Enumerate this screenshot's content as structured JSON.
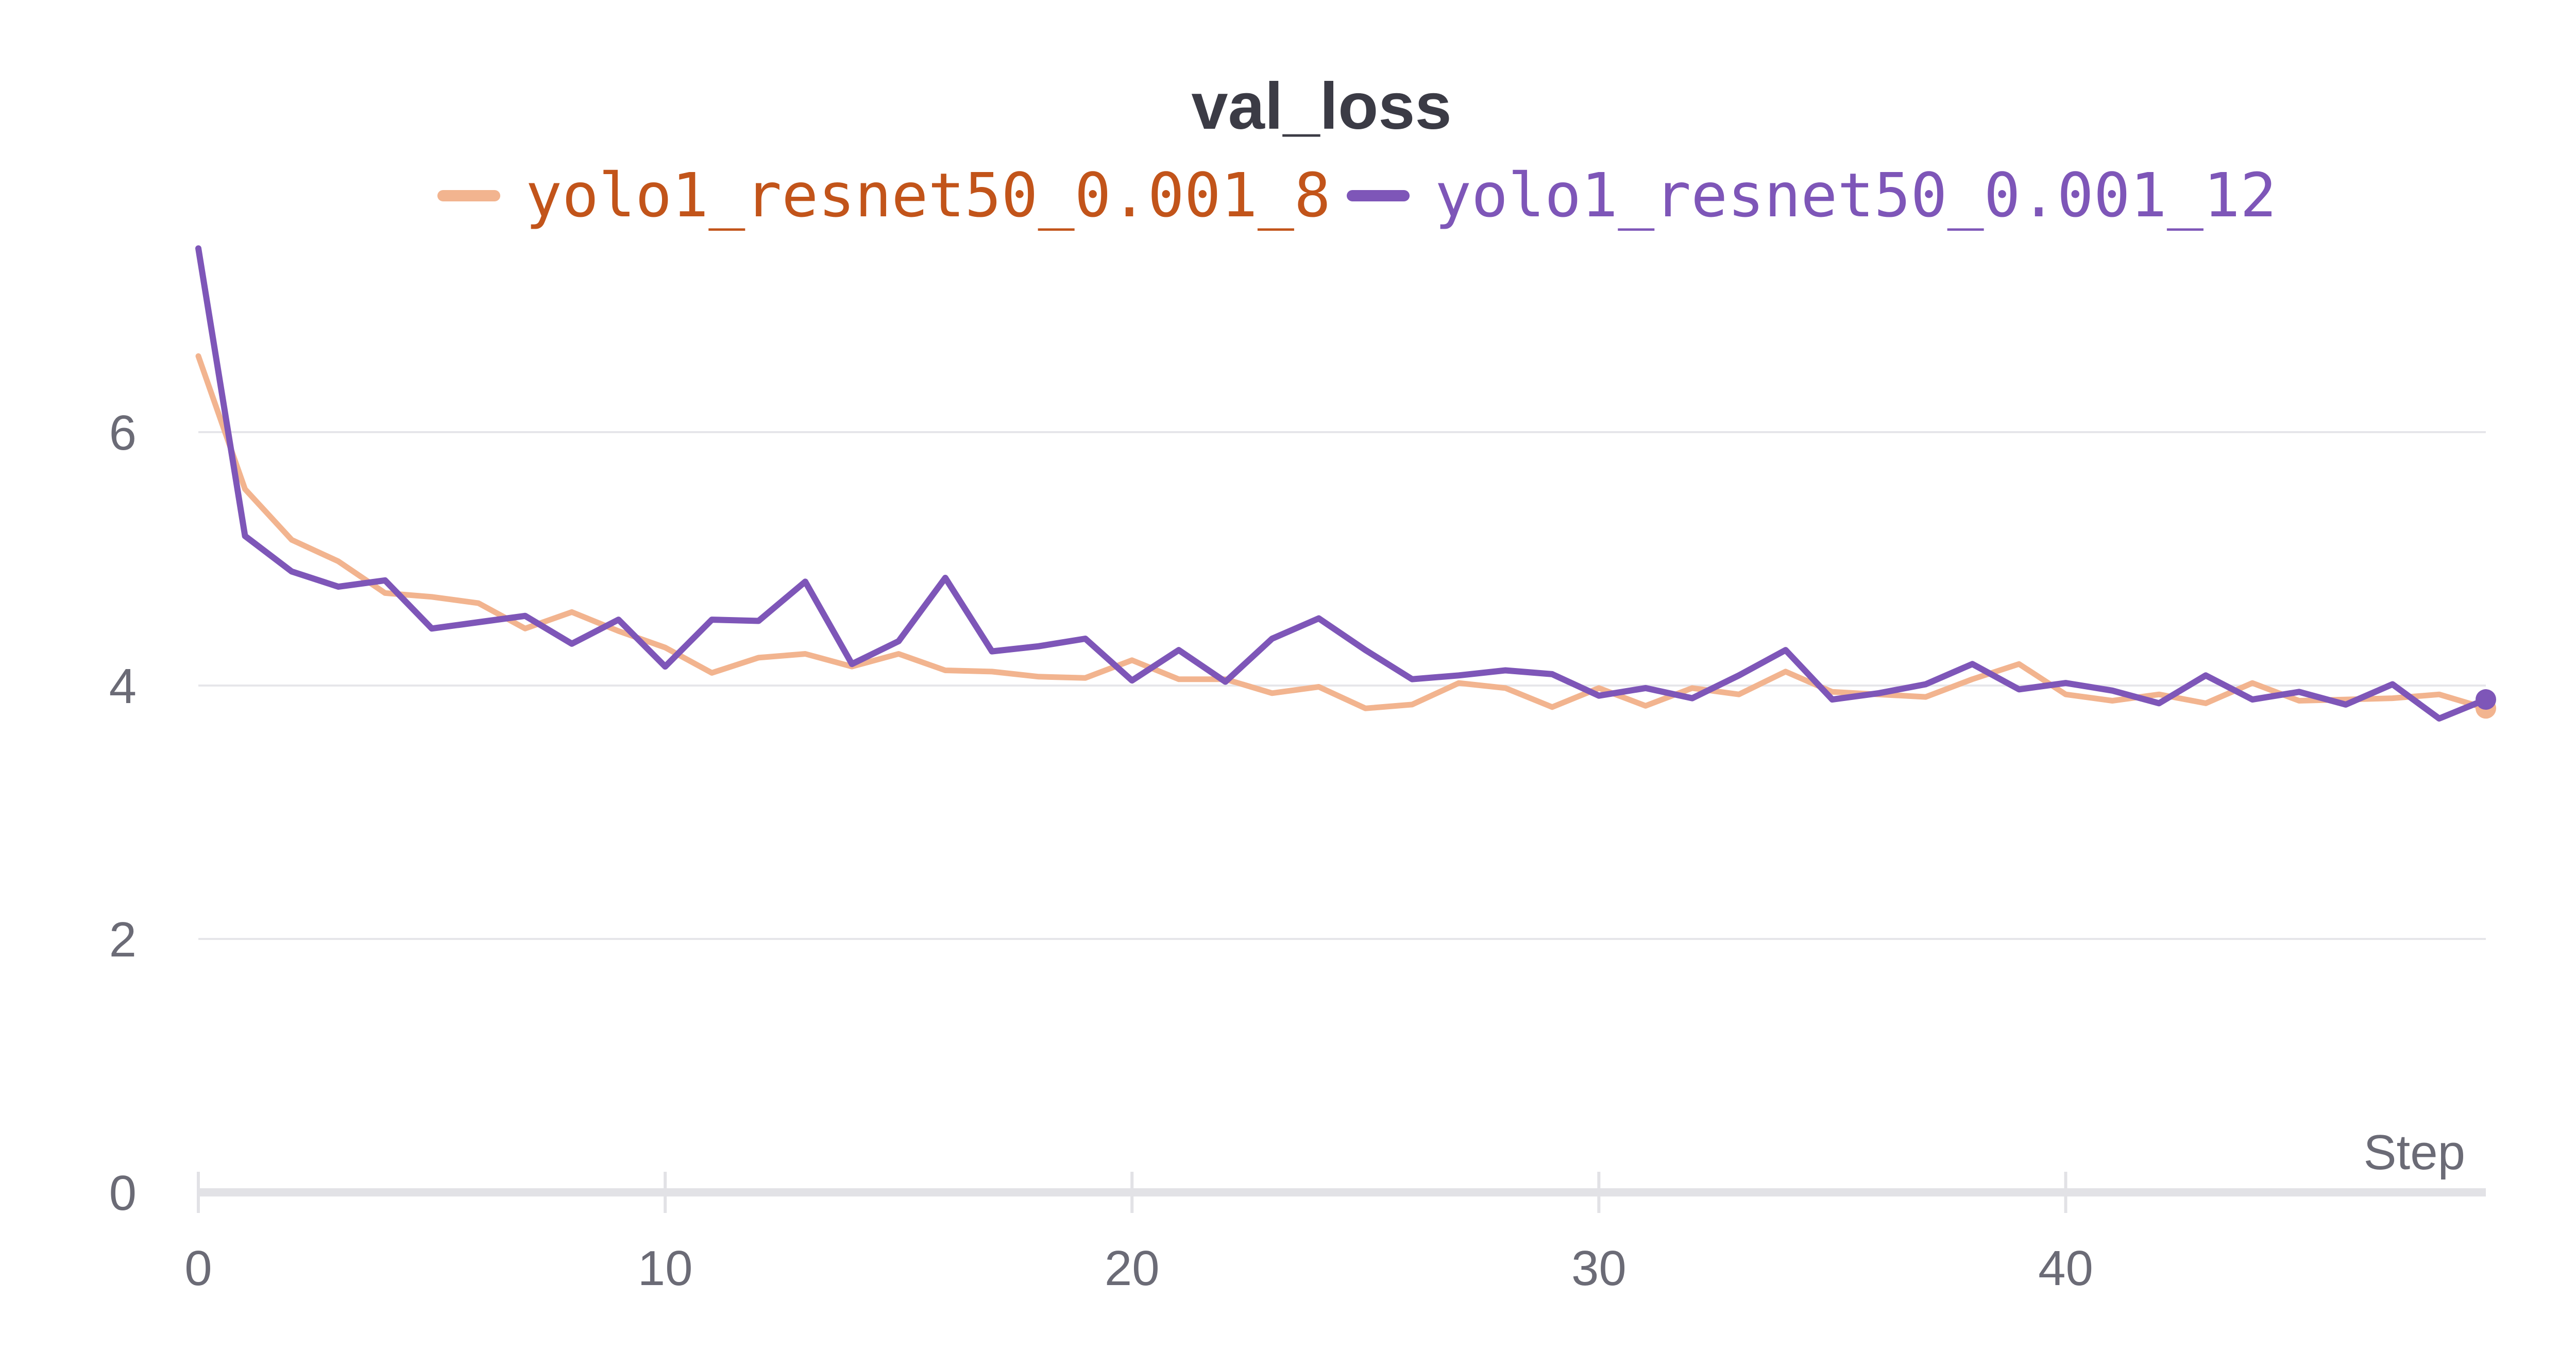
{
  "chart_data": {
    "type": "line",
    "title": "val_loss",
    "xlabel": "Step",
    "ylabel": "",
    "xlim": [
      0,
      49
    ],
    "ylim": [
      0,
      7.5
    ],
    "x_ticks": [
      "0",
      "10",
      "20",
      "30",
      "40"
    ],
    "y_ticks": [
      "0",
      "2",
      "4",
      "6"
    ],
    "grid": true,
    "legend_position": "top",
    "x": [
      0,
      1,
      2,
      3,
      4,
      5,
      6,
      7,
      8,
      9,
      10,
      11,
      12,
      13,
      14,
      15,
      16,
      17,
      18,
      19,
      20,
      21,
      22,
      23,
      24,
      25,
      26,
      27,
      28,
      29,
      30,
      31,
      32,
      33,
      34,
      35,
      36,
      37,
      38,
      39,
      40,
      41,
      42,
      43,
      44,
      45,
      46,
      47,
      48,
      49
    ],
    "series": [
      {
        "name": "yolo1_resnet50_0.001_8",
        "color": "#f2b48f",
        "legend_text_color": "#c2541a",
        "values": [
          6.6,
          5.55,
          5.15,
          4.98,
          4.73,
          4.7,
          4.65,
          4.45,
          4.58,
          4.43,
          4.3,
          4.1,
          4.22,
          4.25,
          4.15,
          4.25,
          4.12,
          4.11,
          4.07,
          4.06,
          4.2,
          4.05,
          4.05,
          3.94,
          3.99,
          3.82,
          3.85,
          4.02,
          3.98,
          3.83,
          3.98,
          3.84,
          3.98,
          3.93,
          4.11,
          3.95,
          3.93,
          3.91,
          4.05,
          4.17,
          3.93,
          3.88,
          3.93,
          3.86,
          4.02,
          3.88,
          3.89,
          3.9,
          3.93,
          3.82
        ]
      },
      {
        "name": "yolo1_resnet50_0.001_12",
        "color": "#7e56b8",
        "legend_text_color": "#7e56b8",
        "values": [
          7.45,
          5.18,
          4.9,
          4.78,
          4.83,
          4.45,
          4.5,
          4.55,
          4.33,
          4.52,
          4.15,
          4.52,
          4.51,
          4.82,
          4.17,
          4.35,
          4.85,
          4.27,
          4.31,
          4.37,
          4.04,
          4.28,
          4.03,
          4.37,
          4.53,
          4.28,
          4.05,
          4.08,
          4.12,
          4.09,
          3.92,
          3.98,
          3.9,
          4.08,
          4.28,
          3.89,
          3.94,
          4.01,
          4.17,
          3.97,
          4.02,
          3.96,
          3.86,
          4.08,
          3.89,
          3.95,
          3.85,
          4.01,
          3.74,
          3.89
        ]
      }
    ]
  }
}
